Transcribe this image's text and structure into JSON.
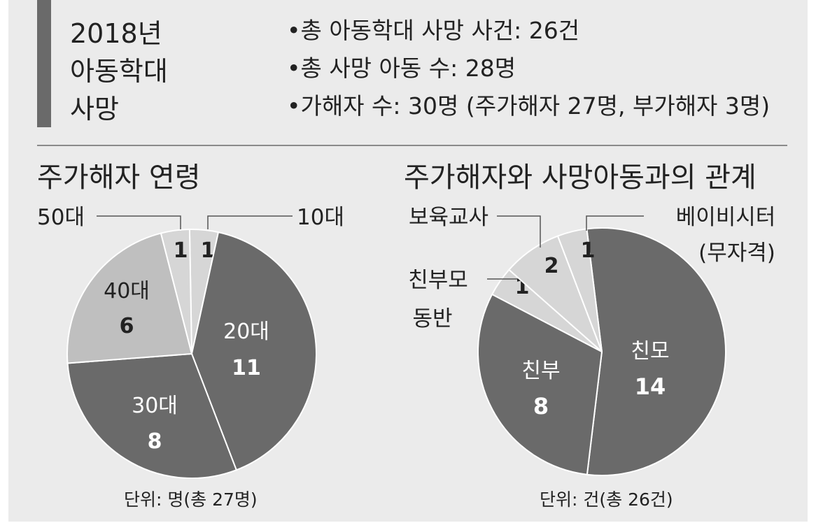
{
  "header": {
    "title_lines": [
      "2018년",
      "아동학대",
      "사망"
    ],
    "bullets": [
      "•총 아동학대 사망 사건: 26건",
      "•총 사망 아동 수: 28명",
      "•가해자 수: 30명 (주가해자 27명, 부가해자 3명)"
    ]
  },
  "colors": {
    "dark": "#6a6a6a",
    "mid": "#bfbfbf",
    "light": "#d6d6d6",
    "background": "#ebebeb"
  },
  "chart_data": [
    {
      "type": "pie",
      "title": "주가해자 연령",
      "unit_note": "단위: 명(총 27명)",
      "total": 27,
      "slices": [
        {
          "label": "10대",
          "value": 1,
          "color": "#d6d6d6"
        },
        {
          "label": "20대",
          "value": 11,
          "color": "#6a6a6a"
        },
        {
          "label": "30대",
          "value": 8,
          "color": "#6a6a6a"
        },
        {
          "label": "40대",
          "value": 6,
          "color": "#bfbfbf"
        },
        {
          "label": "50대",
          "value": 1,
          "color": "#d6d6d6"
        }
      ]
    },
    {
      "type": "pie",
      "title": "주가해자와 사망아동과의 관계",
      "unit_note": "단위: 건(총 26건)",
      "total": 26,
      "slices": [
        {
          "label": "친모",
          "value": 14,
          "color": "#6a6a6a"
        },
        {
          "label": "친부",
          "value": 8,
          "color": "#6a6a6a"
        },
        {
          "label": "친부모 동반",
          "value": 1,
          "color": "#d6d6d6"
        },
        {
          "label": "보육교사",
          "value": 2,
          "color": "#d6d6d6"
        },
        {
          "label": "베이비시터 (무자격)",
          "value": 1,
          "color": "#d6d6d6"
        }
      ]
    }
  ]
}
